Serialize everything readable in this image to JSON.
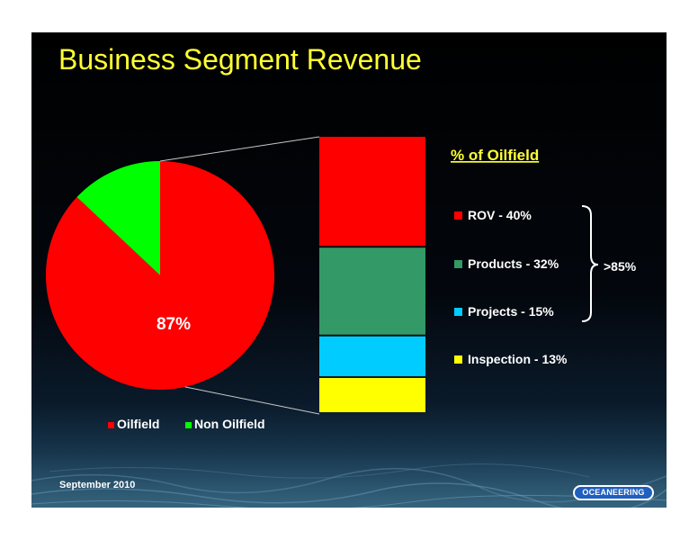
{
  "title": "Business Segment Revenue",
  "footer": {
    "date": "September 2010"
  },
  "logo": {
    "text": "OCEANEERING"
  },
  "colors": {
    "title": "#ffff33",
    "oilfield": "#ff0000",
    "non_oilfield": "#00ff00",
    "rov": "#ff0000",
    "products": "#339966",
    "projects": "#00ccff",
    "inspection": "#ffff00"
  },
  "chart_data": [
    {
      "type": "pie",
      "labels": [
        "Oilfield",
        "Non Oilfield"
      ],
      "values": [
        87,
        13
      ],
      "data_labels": [
        "87%",
        ""
      ],
      "colors": [
        "#ff0000",
        "#00ff00"
      ],
      "legend": {
        "position": "bottom",
        "entries": [
          "Oilfield",
          "Non Oilfield"
        ]
      }
    },
    {
      "type": "bar",
      "stacked": true,
      "title": "% of Oilfield",
      "categories": [
        "ROV",
        "Products",
        "Projects",
        "Inspection"
      ],
      "values": [
        40,
        32,
        15,
        13
      ],
      "colors": [
        "#ff0000",
        "#339966",
        "#00ccff",
        "#ffff00"
      ],
      "legend_labels": [
        "ROV - 40%",
        "Products - 32%",
        "Projects - 15%",
        "Inspection - 13%"
      ],
      "bracket_note": ">85%"
    }
  ]
}
